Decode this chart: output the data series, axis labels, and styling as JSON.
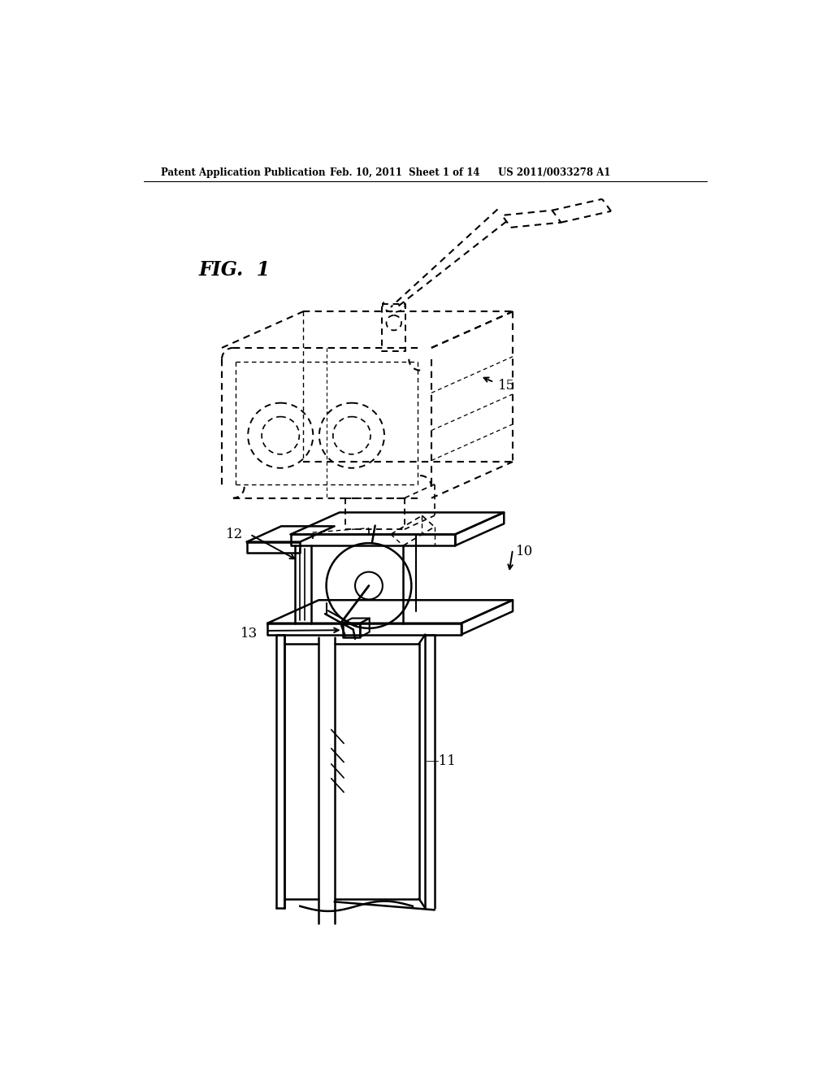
{
  "title_left": "Patent Application Publication",
  "title_center": "Feb. 10, 2011  Sheet 1 of 14",
  "title_right": "US 2011/0033278 A1",
  "fig_label": "FIG. 1",
  "background_color": "#ffffff",
  "line_color": "#000000"
}
